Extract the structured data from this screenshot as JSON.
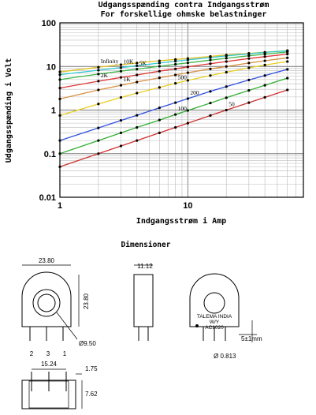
{
  "chart_data": {
    "type": "line",
    "title": "Udgangsspænding contra Indgangsstrøm",
    "subtitle": "For forskellige ohmske belastninger",
    "xlabel": "Indgangsstrøm i Amp",
    "ylabel": "Udgangsspænding i Volt",
    "x_scale": "log",
    "y_scale": "log",
    "xlim": [
      1,
      80
    ],
    "ylim": [
      0.01,
      100
    ],
    "x_ticks": [
      "1",
      "10"
    ],
    "y_ticks": [
      "100",
      "10",
      "1",
      "0.1",
      "0.01"
    ],
    "grid": true,
    "series": [
      {
        "name": "Infinity",
        "color": "#e0c020",
        "x": [
          1,
          2,
          3,
          4,
          6,
          8,
          10,
          15,
          20,
          30,
          40,
          60
        ],
        "y": [
          7.5,
          9.6,
          11,
          12,
          13.5,
          14.5,
          15.3,
          17,
          18.3,
          20,
          21.2,
          23
        ]
      },
      {
        "name": "10K",
        "color": "#30c8d0",
        "x": [
          1,
          2,
          3,
          4,
          6,
          8,
          10,
          15,
          20,
          30,
          40,
          60
        ],
        "y": [
          6.5,
          8.2,
          9.4,
          10.4,
          12,
          13.2,
          14.2,
          16,
          17.5,
          19.5,
          21,
          23
        ]
      },
      {
        "name": "5K",
        "color": "#40b848",
        "x": [
          1,
          2,
          3,
          4,
          6,
          8,
          10,
          15,
          20,
          30,
          40,
          60
        ],
        "y": [
          5,
          6.7,
          7.8,
          8.7,
          10.1,
          11.2,
          12.1,
          14,
          15.4,
          17.6,
          19.2,
          21.5
        ]
      },
      {
        "name": "2K",
        "color": "#e03838",
        "x": [
          1,
          2,
          3,
          4,
          6,
          8,
          10,
          15,
          20,
          30,
          40,
          60
        ],
        "y": [
          3.2,
          4.6,
          5.6,
          6.4,
          7.8,
          8.8,
          9.8,
          11.6,
          13,
          15.2,
          16.8,
          19.2
        ]
      },
      {
        "name": "1K",
        "color": "#d89040",
        "x": [
          1,
          2,
          3,
          4,
          6,
          8,
          10,
          15,
          20,
          30,
          40,
          60
        ],
        "y": [
          1.8,
          2.9,
          3.7,
          4.4,
          5.5,
          6.4,
          7.2,
          8.8,
          10,
          12,
          13.5,
          15.8
        ]
      },
      {
        "name": "500",
        "color": "#e8d020",
        "x": [
          1,
          2,
          3,
          4,
          6,
          8,
          10,
          15,
          20,
          30,
          40,
          60
        ],
        "y": [
          0.75,
          1.38,
          1.95,
          2.45,
          3.3,
          4.1,
          4.8,
          6.2,
          7.4,
          9.3,
          10.8,
          13
        ]
      },
      {
        "name": "200",
        "color": "#3050e0",
        "x": [
          1,
          2,
          3,
          4,
          6,
          8,
          10,
          15,
          20,
          30,
          40,
          60
        ],
        "y": [
          0.2,
          0.39,
          0.58,
          0.76,
          1.13,
          1.48,
          1.83,
          2.68,
          3.45,
          4.9,
          6.2,
          8.6
        ]
      },
      {
        "name": "100",
        "color": "#30b030",
        "x": [
          1,
          2,
          3,
          4,
          6,
          8,
          10,
          15,
          20,
          30,
          40,
          60
        ],
        "y": [
          0.1,
          0.2,
          0.3,
          0.4,
          0.59,
          0.79,
          0.98,
          1.45,
          1.92,
          2.82,
          3.7,
          5.4
        ]
      },
      {
        "name": "50",
        "color": "#d03030",
        "x": [
          1,
          2,
          3,
          4,
          6,
          8,
          10,
          15,
          20,
          30,
          40,
          60
        ],
        "y": [
          0.05,
          0.1,
          0.15,
          0.2,
          0.3,
          0.4,
          0.5,
          0.75,
          1.0,
          1.48,
          1.96,
          2.9
        ]
      }
    ],
    "series_labels": [
      "Infinity",
      "10K",
      "5K",
      "2K",
      "1K",
      "500",
      "200",
      "100",
      "50"
    ]
  },
  "dimensions": {
    "title": "Dimensioner",
    "width_front": "23.80",
    "height_front": "23.80",
    "depth": "11.12",
    "hole_dia": "Ø9.50",
    "pin_numbers": [
      "2",
      "3",
      "1"
    ],
    "pin_spacing": "15.24",
    "top_offset": "1.75",
    "base_height": "7.62",
    "pin_gap": "5±1mm",
    "pin_dia": "Ø 0.813",
    "marking_lines": [
      "TALEMA INDIA",
      "W/Y",
      "AC1020"
    ]
  }
}
